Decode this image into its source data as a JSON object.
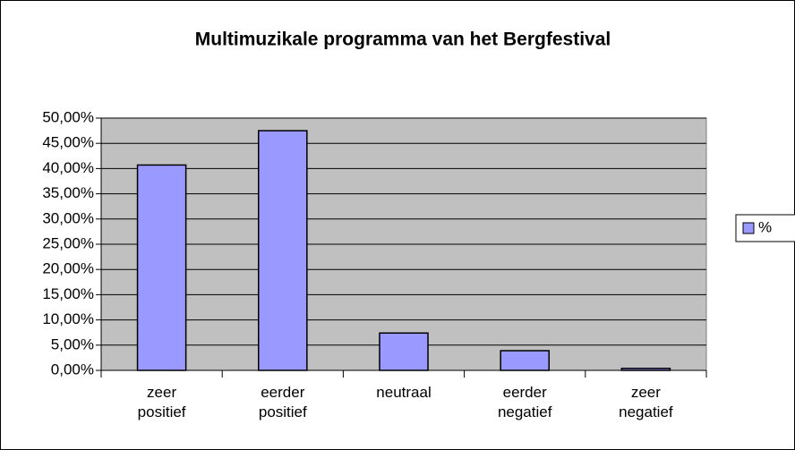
{
  "chart_data": {
    "type": "bar",
    "title": "Multimuzikale programma van het Bergfestival",
    "categories": [
      "zeer positief",
      "eerder positief",
      "neutraal",
      "eerder negatief",
      "zeer negatief"
    ],
    "series": [
      {
        "name": "%",
        "color": "#9999ff",
        "values": [
          40.7,
          47.5,
          7.4,
          3.9,
          0.4
        ]
      }
    ],
    "ylim": [
      0,
      50
    ],
    "yticks": [
      {
        "value": 0,
        "label": "0,00%"
      },
      {
        "value": 5,
        "label": "5,00%"
      },
      {
        "value": 10,
        "label": "10,00%"
      },
      {
        "value": 15,
        "label": "15,00%"
      },
      {
        "value": 20,
        "label": "20,00%"
      },
      {
        "value": 25,
        "label": "25,00%"
      },
      {
        "value": 30,
        "label": "30,00%"
      },
      {
        "value": 35,
        "label": "35,00%"
      },
      {
        "value": 40,
        "label": "40,00%"
      },
      {
        "value": 45,
        "label": "45,00%"
      },
      {
        "value": 50,
        "label": "50,00%"
      }
    ],
    "grid": true,
    "legend": "right"
  }
}
